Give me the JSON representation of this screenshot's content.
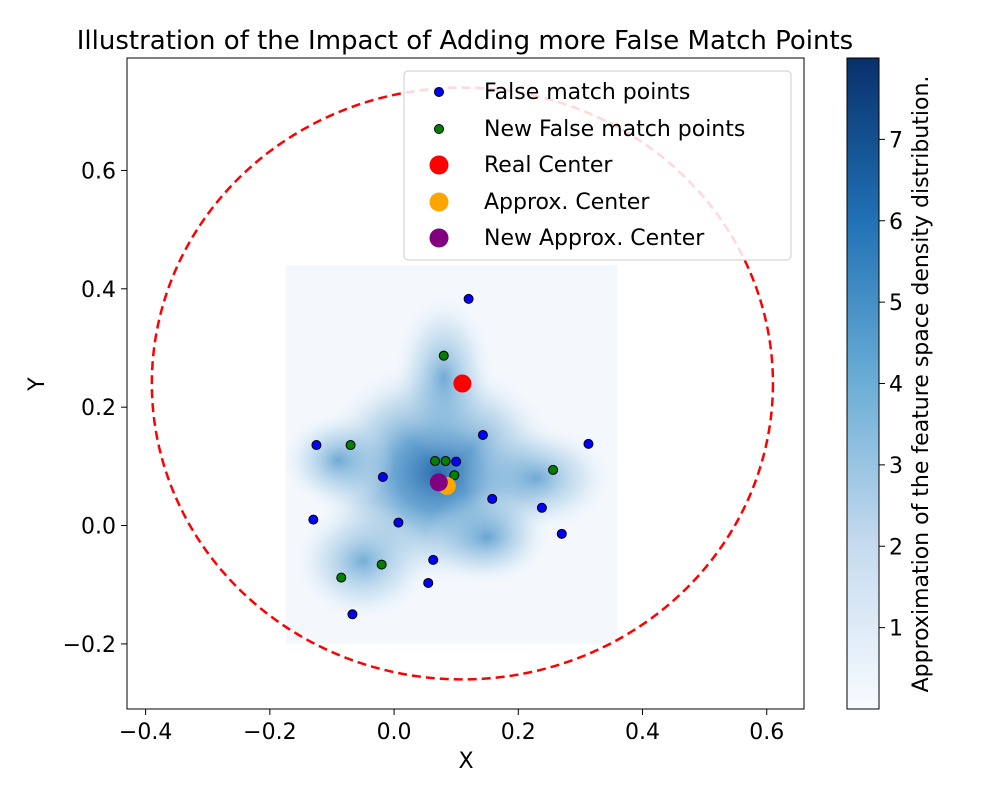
{
  "chart_data": {
    "type": "scatter",
    "title": "Illustration of the Impact of Adding more False Match Points",
    "xlabel": "X",
    "ylabel": "Y",
    "xlim": [
      -0.43,
      0.66
    ],
    "ylim": [
      -0.31,
      0.79
    ],
    "xticks": [
      -0.4,
      -0.2,
      0.0,
      0.2,
      0.4,
      0.6
    ],
    "xtick_labels": [
      "−0.4",
      "−0.2",
      "0.0",
      "0.2",
      "0.4",
      "0.6"
    ],
    "yticks": [
      -0.2,
      0.0,
      0.2,
      0.4,
      0.6
    ],
    "ytick_labels": [
      "−0.2",
      "0.0",
      "0.2",
      "0.4",
      "0.6"
    ],
    "grid": false,
    "legend_position": "top-right",
    "density": {
      "extent_x": [
        -0.175,
        0.36
      ],
      "extent_y": [
        -0.2,
        0.44
      ],
      "peak": [
        0.07,
        0.09
      ],
      "colormap": "Blues"
    },
    "colorbar": {
      "label": "Approximation of the feature space density distribution.",
      "range": [
        0,
        8
      ],
      "ticks": [
        1,
        2,
        3,
        4,
        5,
        6,
        7
      ]
    },
    "circle": {
      "center": [
        0.11,
        0.24
      ],
      "radius": 0.5,
      "color": "#ff0000",
      "style": "dashed"
    },
    "series": [
      {
        "name": "False match points",
        "color": "#0000ff",
        "points": [
          [
            0.12,
            0.383
          ],
          [
            0.143,
            0.153
          ],
          [
            0.1,
            0.108
          ],
          [
            0.313,
            0.138
          ],
          [
            -0.125,
            0.136
          ],
          [
            -0.018,
            0.082
          ],
          [
            0.158,
            0.045
          ],
          [
            0.238,
            0.03
          ],
          [
            -0.13,
            0.01
          ],
          [
            0.007,
            0.005
          ],
          [
            0.27,
            -0.014
          ],
          [
            0.063,
            -0.058
          ],
          [
            0.055,
            -0.097
          ],
          [
            -0.067,
            -0.15
          ]
        ]
      },
      {
        "name": "New False match points",
        "color": "#008000",
        "points": [
          [
            0.08,
            0.287
          ],
          [
            -0.07,
            0.136
          ],
          [
            0.066,
            0.109
          ],
          [
            0.083,
            0.109
          ],
          [
            0.097,
            0.085
          ],
          [
            0.256,
            0.094
          ],
          [
            -0.02,
            -0.066
          ],
          [
            -0.085,
            -0.088
          ]
        ]
      },
      {
        "name": "Real Center",
        "color": "#ff0000",
        "points": [
          [
            0.11,
            0.24
          ]
        ]
      },
      {
        "name": "Approx. Center",
        "color": "#ffa500",
        "points": [
          [
            0.085,
            0.067
          ]
        ]
      },
      {
        "name": "New Approx. Center",
        "color": "#800080",
        "points": [
          [
            0.072,
            0.073
          ]
        ]
      }
    ]
  }
}
